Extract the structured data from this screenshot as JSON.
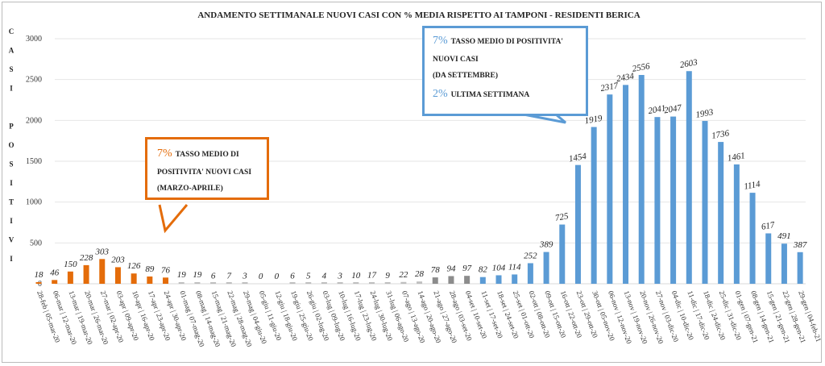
{
  "chart_data": {
    "type": "bar",
    "title": "ANDAMENTO SETTIMANALE NUOVI CASI CON % MEDIA RISPETTO AI TAMPONI - RESIDENTI BERICA",
    "ylabel": "CASI POSITIVI",
    "ylabel_letters": [
      "C",
      "A",
      "S",
      "I",
      "",
      "P",
      "O",
      "S",
      "I",
      "T",
      "I",
      "V",
      "I"
    ],
    "xlabel": "",
    "ylim": [
      0,
      3000
    ],
    "yticks": [
      "0",
      "500",
      "1000",
      "1500",
      "2000",
      "2500",
      "3000"
    ],
    "grid": true,
    "categories": [
      "28-feb | 05-mar-20",
      "06-mar | 12-mar-20",
      "13-mar | 19-mar-20",
      "20-mar | 26-mar-20",
      "27-mar | 02-apr-20",
      "03-apr | 09-apr-20",
      "10-apr | 16-apr-20",
      "17-apr | 23-apr-20",
      "24-apr | 30-apr-20",
      "01-mag | 07-mag-20",
      "08-mag | 14-mag-20",
      "15-mag | 21-mag-20",
      "22-mag | 28-mag-20",
      "29-mag | 04-giu-20",
      "05-giu | 11-giu-20",
      "12-giu | 18-giu-20",
      "19-giu | 25-giu-20",
      "26-giu | 02-lug-20",
      "03-lug | 09-lug-20",
      "10-lug | 16-lug-20",
      "17-lug | 23-lug-20",
      "24-lug | 30-lug-20",
      "31-lug | 06-ago-20",
      "07-ago | 13-ago-20",
      "14-ago | 20-ago-20",
      "21-ago | 27-ago-20",
      "28-ago | 03-set-20",
      "04-set | 10-set-20",
      "11-set | 17-set-20",
      "18-set | 24-set-20",
      "25-set | 01-ott-20",
      "02-ott | 08-ott-20",
      "09-ott | 15-ott-20",
      "16-ott | 22-ott-20",
      "23-ott | 29-ott-20",
      "30-ott | 05-nov-20",
      "06-nov | 12-nov-20",
      "13-nov | 19-nov-20",
      "20-nov | 26-nov-20",
      "27-nov | 03-dic-20",
      "04-dic | 10-dic-20",
      "11-dic | 17-dic-20",
      "18-dic | 24-dic-20",
      "25-dic | 31-dic-20",
      "01-gen | 07-gen-21",
      "08-gen | 14-gen-21",
      "15-gen | 21-gen-21",
      "22-gen | 28-gen-21",
      "29-gen | 04-feb-21"
    ],
    "values": [
      18,
      46,
      150,
      228,
      303,
      203,
      126,
      89,
      76,
      19,
      19,
      6,
      7,
      3,
      0,
      0,
      6,
      5,
      4,
      3,
      10,
      17,
      9,
      22,
      28,
      78,
      94,
      97,
      82,
      104,
      114,
      252,
      389,
      725,
      1454,
      1919,
      2317,
      2434,
      2556,
      2041,
      2047,
      2603,
      1993,
      1736,
      1461,
      1114,
      617,
      491,
      387
    ],
    "color_groups": [
      {
        "from": 0,
        "to": 8,
        "color": "#E46C0A"
      },
      {
        "from": 9,
        "to": 24,
        "color": "#BFBFBF"
      },
      {
        "from": 25,
        "to": 27,
        "color": "#8C8C8C"
      },
      {
        "from": 28,
        "to": 48,
        "color": "#5B9BD5"
      }
    ],
    "annotations": [
      {
        "id": "spring",
        "color": "#E46C0A",
        "pct": "7%",
        "lines": [
          "TASSO MEDIO DI",
          "POSITIVITA' NUOVI CASI",
          "(MARZO-APRILE)"
        ]
      },
      {
        "id": "autumn",
        "color": "#5B9BD5",
        "pct": "7%",
        "lines": [
          "TASSO MEDIO DI POSITIVITA'",
          "NUOVI CASI",
          "(DA SETTEMBRE)"
        ],
        "pct2": "2%",
        "line2": "ULTIMA SETTIMANA"
      }
    ]
  }
}
